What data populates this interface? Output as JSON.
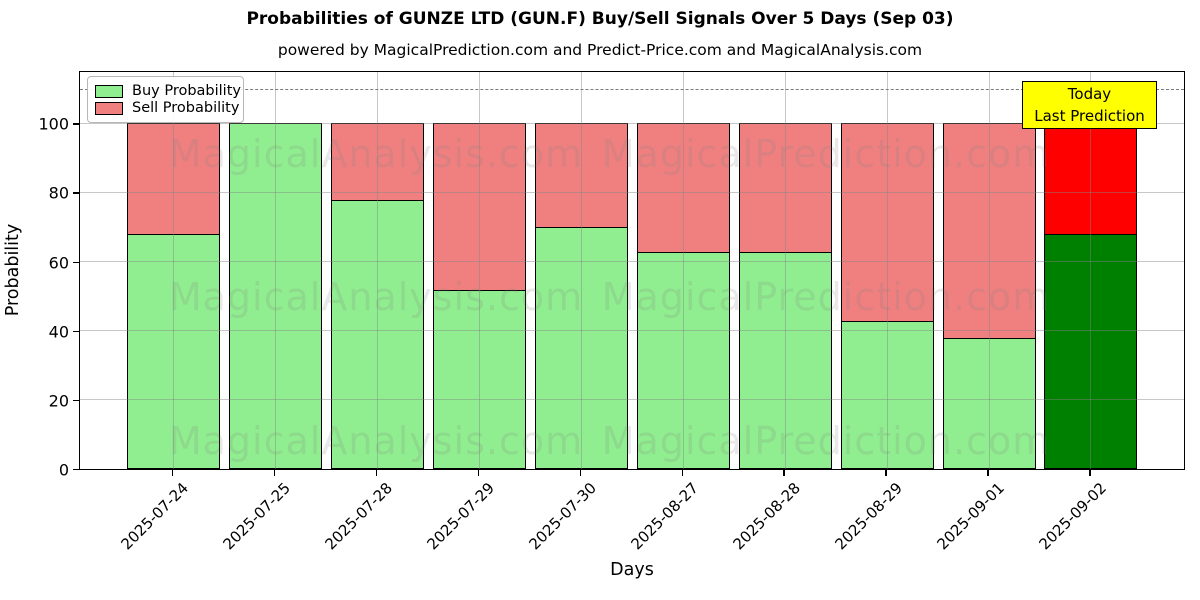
{
  "title": "Probabilities of GUNZE LTD (GUN.F) Buy/Sell Signals Over 5 Days (Sep 03)",
  "subtitle": "powered by MagicalPrediction.com and Predict-Price.com and MagicalAnalysis.com",
  "watermarks": {
    "left": "MagicalAnalysis.com",
    "right": "MagicalPrediction.com"
  },
  "legend": {
    "items": [
      {
        "label": "Buy Probability",
        "color": "#90ee90"
      },
      {
        "label": "Sell Probability",
        "color": "#f08080"
      }
    ]
  },
  "annotation": {
    "line1": "Today",
    "line2": "Last Prediction",
    "bg_color": "#ffff00"
  },
  "axes": {
    "xlabel": "Days",
    "ylabel": "Probability",
    "yticks": [
      0,
      20,
      40,
      60,
      80,
      100
    ],
    "ylim": [
      0,
      115.4
    ],
    "dashed_line_y": 110
  },
  "colors": {
    "buy": "#90ee90",
    "sell": "#f08080",
    "buy_today": "#008000",
    "sell_today": "#ff0000",
    "bar_edge": "#000000",
    "annotation_bg": "#ffff00"
  },
  "chart_data": {
    "type": "bar",
    "stacked": true,
    "title": "Probabilities of GUNZE LTD (GUN.F) Buy/Sell Signals Over 5 Days (Sep 03)",
    "xlabel": "Days",
    "ylabel": "Probability",
    "ylim": [
      0,
      115.4
    ],
    "grid": true,
    "legend_position": "upper left",
    "categories": [
      "2025-07-24",
      "2025-07-25",
      "2025-07-28",
      "2025-07-29",
      "2025-07-30",
      "2025-08-27",
      "2025-08-28",
      "2025-08-29",
      "2025-09-01",
      "2025-09-02"
    ],
    "series": [
      {
        "name": "Buy Probability",
        "values": [
          68,
          100,
          78,
          52,
          70,
          63,
          63,
          43,
          38,
          68
        ]
      },
      {
        "name": "Sell Probability",
        "values": [
          32,
          0,
          22,
          48,
          30,
          37,
          37,
          57,
          62,
          32
        ]
      }
    ],
    "today_index": 9,
    "annotation_text": "Today\nLast Prediction",
    "reference_line": 110
  }
}
